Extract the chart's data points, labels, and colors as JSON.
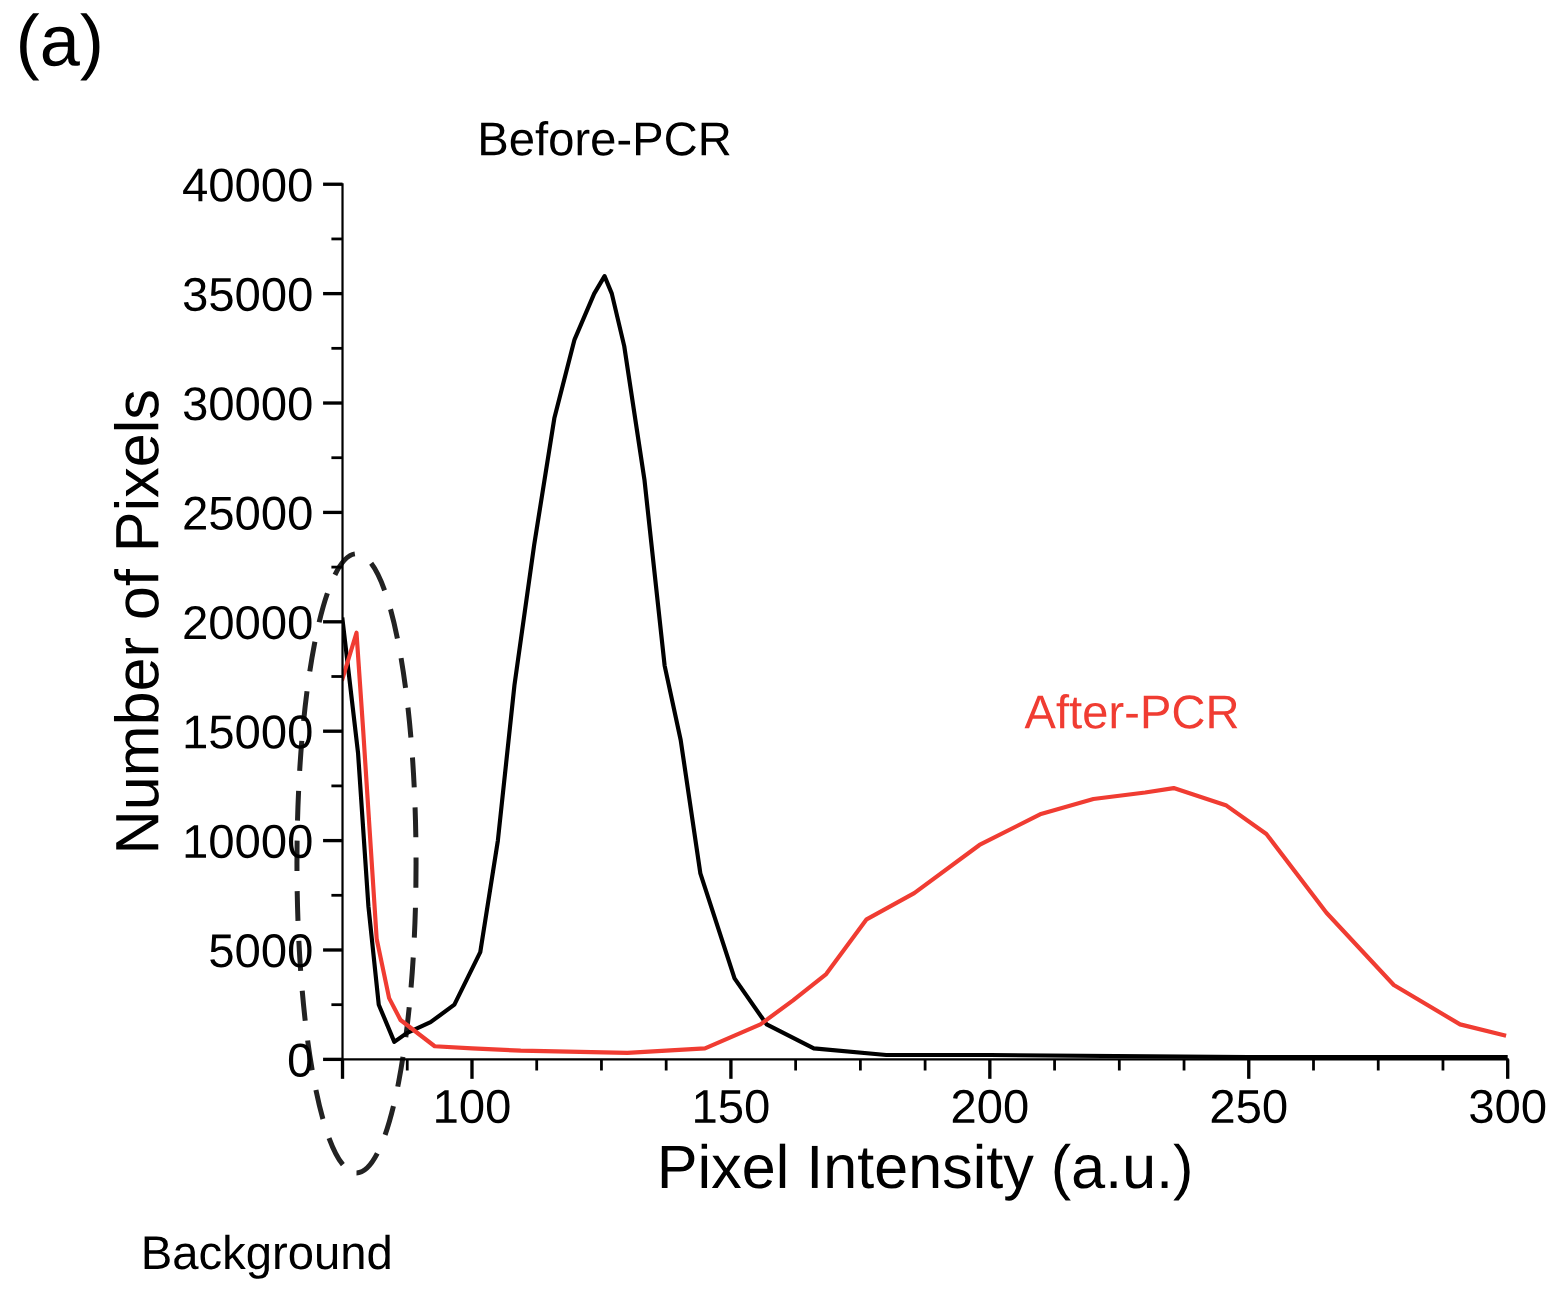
{
  "chart_data": {
    "type": "line",
    "xlabel": "Pixel Intensity (a.u.)",
    "ylabel": "Number of Pixels",
    "annotations": [
      "(a)",
      "Background"
    ],
    "xlim": [
      75,
      300
    ],
    "xticks": [
      {
        "value": 75,
        "label": null
      },
      100,
      150,
      200,
      250,
      300
    ],
    "ylim": [
      0,
      40000
    ],
    "yticks": [
      0,
      5000,
      10000,
      15000,
      20000,
      25000,
      30000,
      35000,
      40000
    ],
    "grid": false,
    "legend": false,
    "series": [
      {
        "name": "Before-PCR",
        "color": "#000000",
        "x": [
          75,
          78,
          80,
          82,
          85,
          87.4,
          92,
          96.6,
          101.6,
          105,
          108.2,
          112,
          115.9,
          119.8,
          123.6,
          125.6,
          127,
          129.4,
          133.3,
          137.2,
          140.3,
          144.1,
          150.7,
          156.9,
          166,
          180,
          200,
          250,
          300
        ],
        "values": [
          20100,
          14000,
          7000,
          2500,
          800,
          1200,
          1700,
          2500,
          4900,
          10000,
          17100,
          23500,
          29300,
          32900,
          35000,
          35800,
          35000,
          32600,
          26500,
          18000,
          14600,
          8500,
          3700,
          1600,
          500,
          200,
          200,
          100,
          100
        ]
      },
      {
        "name": "After-PCR",
        "color": "#f03c32",
        "x": [
          75,
          77.7,
          79,
          81.6,
          84,
          86.2,
          92.8,
          100,
          109.4,
          130,
          145,
          155.7,
          162,
          168.4,
          176.2,
          185.4,
          198,
          209.7,
          220,
          230,
          235.5,
          245.7,
          253.4,
          265,
          278,
          290.8,
          299.3
        ],
        "values": [
          17400,
          19500,
          15000,
          5500,
          2800,
          1800,
          600,
          500,
          400,
          300,
          500,
          1600,
          2700,
          3900,
          6400,
          7600,
          9800,
          11200,
          11900,
          12200,
          12400,
          11600,
          10300,
          6700,
          3400,
          1600,
          1100
        ]
      }
    ]
  }
}
